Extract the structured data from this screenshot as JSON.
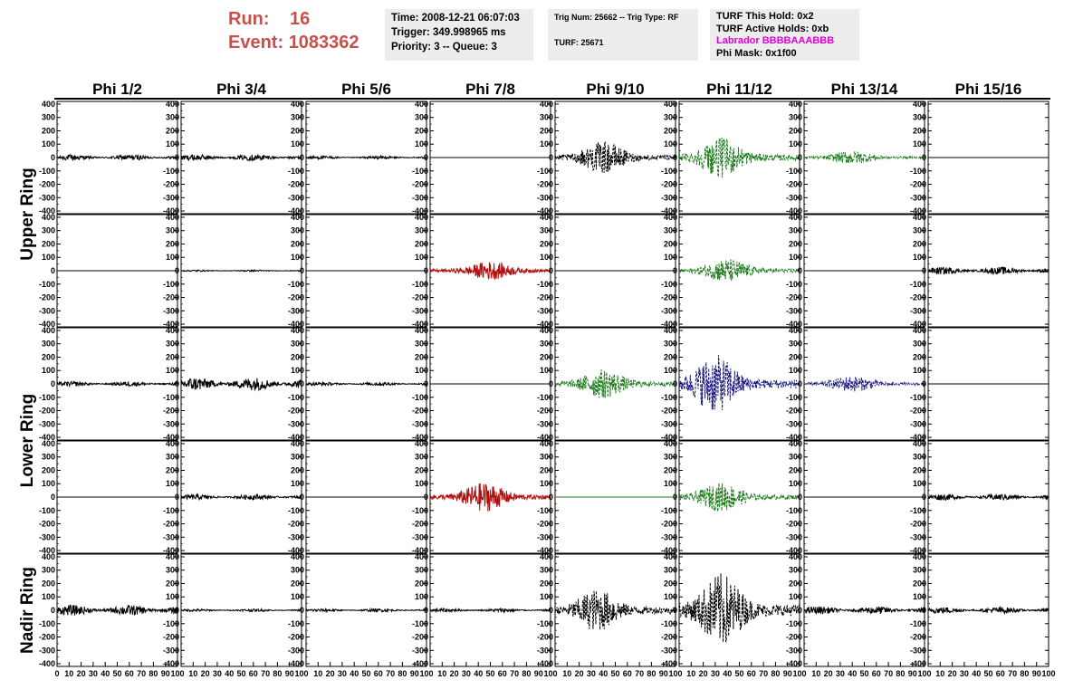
{
  "header": {
    "run_label": "Run:",
    "run_value": "16",
    "event_label": "Event:",
    "event_value": "1083362"
  },
  "info_boxes": {
    "time": "Time: 2008-12-21 06:07:03",
    "trigger": "Trigger: 349.998965 ms",
    "priority": "Priority: 3 -- Queue: 3",
    "trig_num": "Trig Num: 25662 -- Trig Type: RF",
    "turf": "TURF: 25671",
    "turf_this_hold": "TURF This Hold: 0x2",
    "turf_active_holds": "TURF Active Holds: 0xb",
    "labrador": "Labrador BBBBAAABBB",
    "phi_mask": "Phi Mask: 0x1f00"
  },
  "colors": {
    "title_red": "#c9504a",
    "info_bg": "#ededed",
    "labrador": "#e000d8",
    "trace_black": "#000000",
    "trace_green": "#1a7a1a",
    "trace_red": "#b01010",
    "trace_blue": "#1a1a80"
  },
  "chart_data": {
    "type": "line",
    "columns": [
      "Phi 1/2",
      "Phi 3/4",
      "Phi 5/6",
      "Phi 7/8",
      "Phi 9/10",
      "Phi 11/12",
      "Phi 13/14",
      "Phi 15/16"
    ],
    "row_groups": [
      {
        "label": "Upper Ring",
        "rows": [
          0,
          1
        ]
      },
      {
        "label": "Lower Ring",
        "rows": [
          2,
          3
        ]
      },
      {
        "label": "Nadir Ring",
        "rows": [
          4
        ]
      }
    ],
    "ylim": [
      -420,
      420
    ],
    "y_ticks": [
      400,
      300,
      200,
      100,
      0,
      -100,
      -200,
      -300,
      -400
    ],
    "y_tick_labels": [
      "400",
      "300",
      "200",
      "100",
      "0",
      "-100",
      "-200",
      "-300",
      "-400"
    ],
    "xlim": [
      0,
      100
    ],
    "x_ticks": [
      0,
      10,
      20,
      30,
      40,
      50,
      60,
      70,
      80,
      90,
      100
    ],
    "x_tick_labels": [
      "0",
      "10",
      "20",
      "30",
      "40",
      "50",
      "60",
      "70",
      "80",
      "90",
      "100"
    ],
    "panels": [
      [
        {
          "style": "noise",
          "amp": 22,
          "color": "black",
          "dashed": false
        },
        {
          "style": "noise",
          "amp": 24,
          "color": "black",
          "dashed": false
        },
        {
          "style": "noise",
          "amp": 12,
          "color": "black",
          "dashed": false
        },
        {
          "style": "flat",
          "amp": 0,
          "color": "black",
          "dashed": false
        },
        {
          "style": "burst",
          "amp": 120,
          "center": 40,
          "color": "black",
          "dashed": true
        },
        {
          "style": "burst",
          "amp": 150,
          "center": 35,
          "color": "green",
          "dashed": true
        },
        {
          "style": "burst",
          "amp": 50,
          "center": 40,
          "color": "green",
          "dashed": true
        },
        {
          "style": "flat",
          "amp": 0,
          "color": "black",
          "dashed": false
        }
      ],
      [
        {
          "style": "flat",
          "amp": 0,
          "color": "black",
          "dashed": false
        },
        {
          "style": "noise",
          "amp": 6,
          "color": "black",
          "dashed": false
        },
        {
          "style": "flat",
          "amp": 0,
          "color": "black",
          "dashed": false
        },
        {
          "style": "burst",
          "amp": 70,
          "center": 50,
          "color": "red",
          "dashed": false
        },
        {
          "style": "flat",
          "amp": 0,
          "color": "black",
          "dashed": false
        },
        {
          "style": "burst",
          "amp": 90,
          "center": 40,
          "color": "green",
          "dashed": true
        },
        {
          "style": "flat",
          "amp": 0,
          "color": "black",
          "dashed": false
        },
        {
          "style": "noise",
          "amp": 28,
          "color": "black",
          "dashed": false
        }
      ],
      [
        {
          "style": "noise",
          "amp": 18,
          "color": "black",
          "dashed": false
        },
        {
          "style": "noise",
          "amp": 50,
          "color": "black",
          "dashed": false
        },
        {
          "style": "noise",
          "amp": 14,
          "color": "black",
          "dashed": false
        },
        {
          "style": "flat",
          "amp": 0,
          "color": "black",
          "dashed": false
        },
        {
          "style": "burst",
          "amp": 110,
          "center": 40,
          "color": "green",
          "dashed": true
        },
        {
          "style": "burst",
          "amp": 220,
          "center": 30,
          "color": "blue",
          "dashed": true
        },
        {
          "style": "burst",
          "amp": 60,
          "center": 40,
          "color": "blue",
          "dashed": true
        },
        {
          "style": "flat",
          "amp": 0,
          "color": "black",
          "dashed": false
        }
      ],
      [
        {
          "style": "flat",
          "amp": 0,
          "color": "black",
          "dashed": false
        },
        {
          "style": "noise",
          "amp": 20,
          "color": "black",
          "dashed": false
        },
        {
          "style": "flat",
          "amp": 0,
          "color": "black",
          "dashed": false
        },
        {
          "style": "burst",
          "amp": 110,
          "center": 45,
          "color": "red",
          "dashed": false
        },
        {
          "style": "flat",
          "amp": 0,
          "color": "green",
          "dashed": false
        },
        {
          "style": "burst",
          "amp": 110,
          "center": 35,
          "color": "green",
          "dashed": true
        },
        {
          "style": "flat",
          "amp": 0,
          "color": "black",
          "dashed": false
        },
        {
          "style": "noise",
          "amp": 24,
          "color": "black",
          "dashed": false
        }
      ],
      [
        {
          "style": "noise",
          "amp": 40,
          "color": "black",
          "dashed": false
        },
        {
          "style": "noise",
          "amp": 10,
          "color": "black",
          "dashed": false
        },
        {
          "style": "noise",
          "amp": 12,
          "color": "black",
          "dashed": false
        },
        {
          "style": "noise",
          "amp": 14,
          "color": "black",
          "dashed": false
        },
        {
          "style": "burst",
          "amp": 160,
          "center": 35,
          "color": "black",
          "dashed": true
        },
        {
          "style": "burst",
          "amp": 280,
          "center": 35,
          "color": "black",
          "dashed": true
        },
        {
          "style": "noise",
          "amp": 30,
          "color": "black",
          "dashed": false
        },
        {
          "style": "noise",
          "amp": 25,
          "color": "black",
          "dashed": false
        }
      ]
    ]
  }
}
